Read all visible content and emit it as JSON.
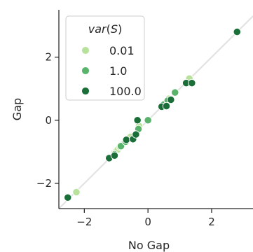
{
  "chart_data": {
    "type": "scatter",
    "xlabel": "No Gap",
    "ylabel": "Gap",
    "xlim": [
      -2.8,
      3.3
    ],
    "ylim": [
      -2.8,
      3.5
    ],
    "xticks": [
      -2,
      0,
      2
    ],
    "yticks": [
      -2,
      0,
      2
    ],
    "xtick_labels": [
      "−2",
      "0",
      "2"
    ],
    "ytick_labels": [
      "−2",
      "0",
      "2"
    ],
    "reference_line": {
      "description": "y = x",
      "color": "#e3e3e3"
    },
    "grid": false,
    "legend": {
      "placement": "top-left",
      "title": "var(S)",
      "title_parts": {
        "func": "var",
        "open": "(",
        "sym": "S",
        "close": ")"
      }
    },
    "series": [
      {
        "name": "0.01",
        "color": "#b8e19c",
        "points": [
          [
            -2.25,
            -2.28
          ],
          [
            -1.05,
            -1.02
          ],
          [
            -1.0,
            -0.98
          ],
          [
            -0.95,
            -0.93
          ],
          [
            -0.88,
            -0.85
          ],
          [
            -0.82,
            -0.78
          ],
          [
            -0.55,
            -0.53
          ],
          [
            0.5,
            0.48
          ],
          [
            0.58,
            0.58
          ],
          [
            0.65,
            0.68
          ],
          [
            1.3,
            1.32
          ],
          [
            -0.28,
            -0.18
          ]
        ]
      },
      {
        "name": "1.0",
        "color": "#59b46b",
        "points": [
          [
            -1.05,
            -1.08
          ],
          [
            -0.85,
            -0.82
          ],
          [
            -0.7,
            -0.68
          ],
          [
            0.0,
            0.0
          ],
          [
            0.5,
            0.5
          ],
          [
            0.62,
            0.62
          ],
          [
            0.85,
            0.88
          ],
          [
            -0.3,
            -0.28
          ],
          [
            0.45,
            0.42
          ]
        ]
      },
      {
        "name": "100.0",
        "color": "#1a6e38",
        "points": [
          [
            -2.52,
            -2.45
          ],
          [
            -1.22,
            -1.2
          ],
          [
            -1.05,
            -1.12
          ],
          [
            -0.68,
            -0.62
          ],
          [
            -0.47,
            -0.6
          ],
          [
            -0.38,
            -0.45
          ],
          [
            -0.33,
            0.0
          ],
          [
            0.43,
            0.43
          ],
          [
            0.58,
            0.45
          ],
          [
            0.72,
            0.65
          ],
          [
            1.2,
            1.18
          ],
          [
            1.38,
            1.18
          ],
          [
            2.8,
            2.8
          ]
        ]
      }
    ]
  }
}
